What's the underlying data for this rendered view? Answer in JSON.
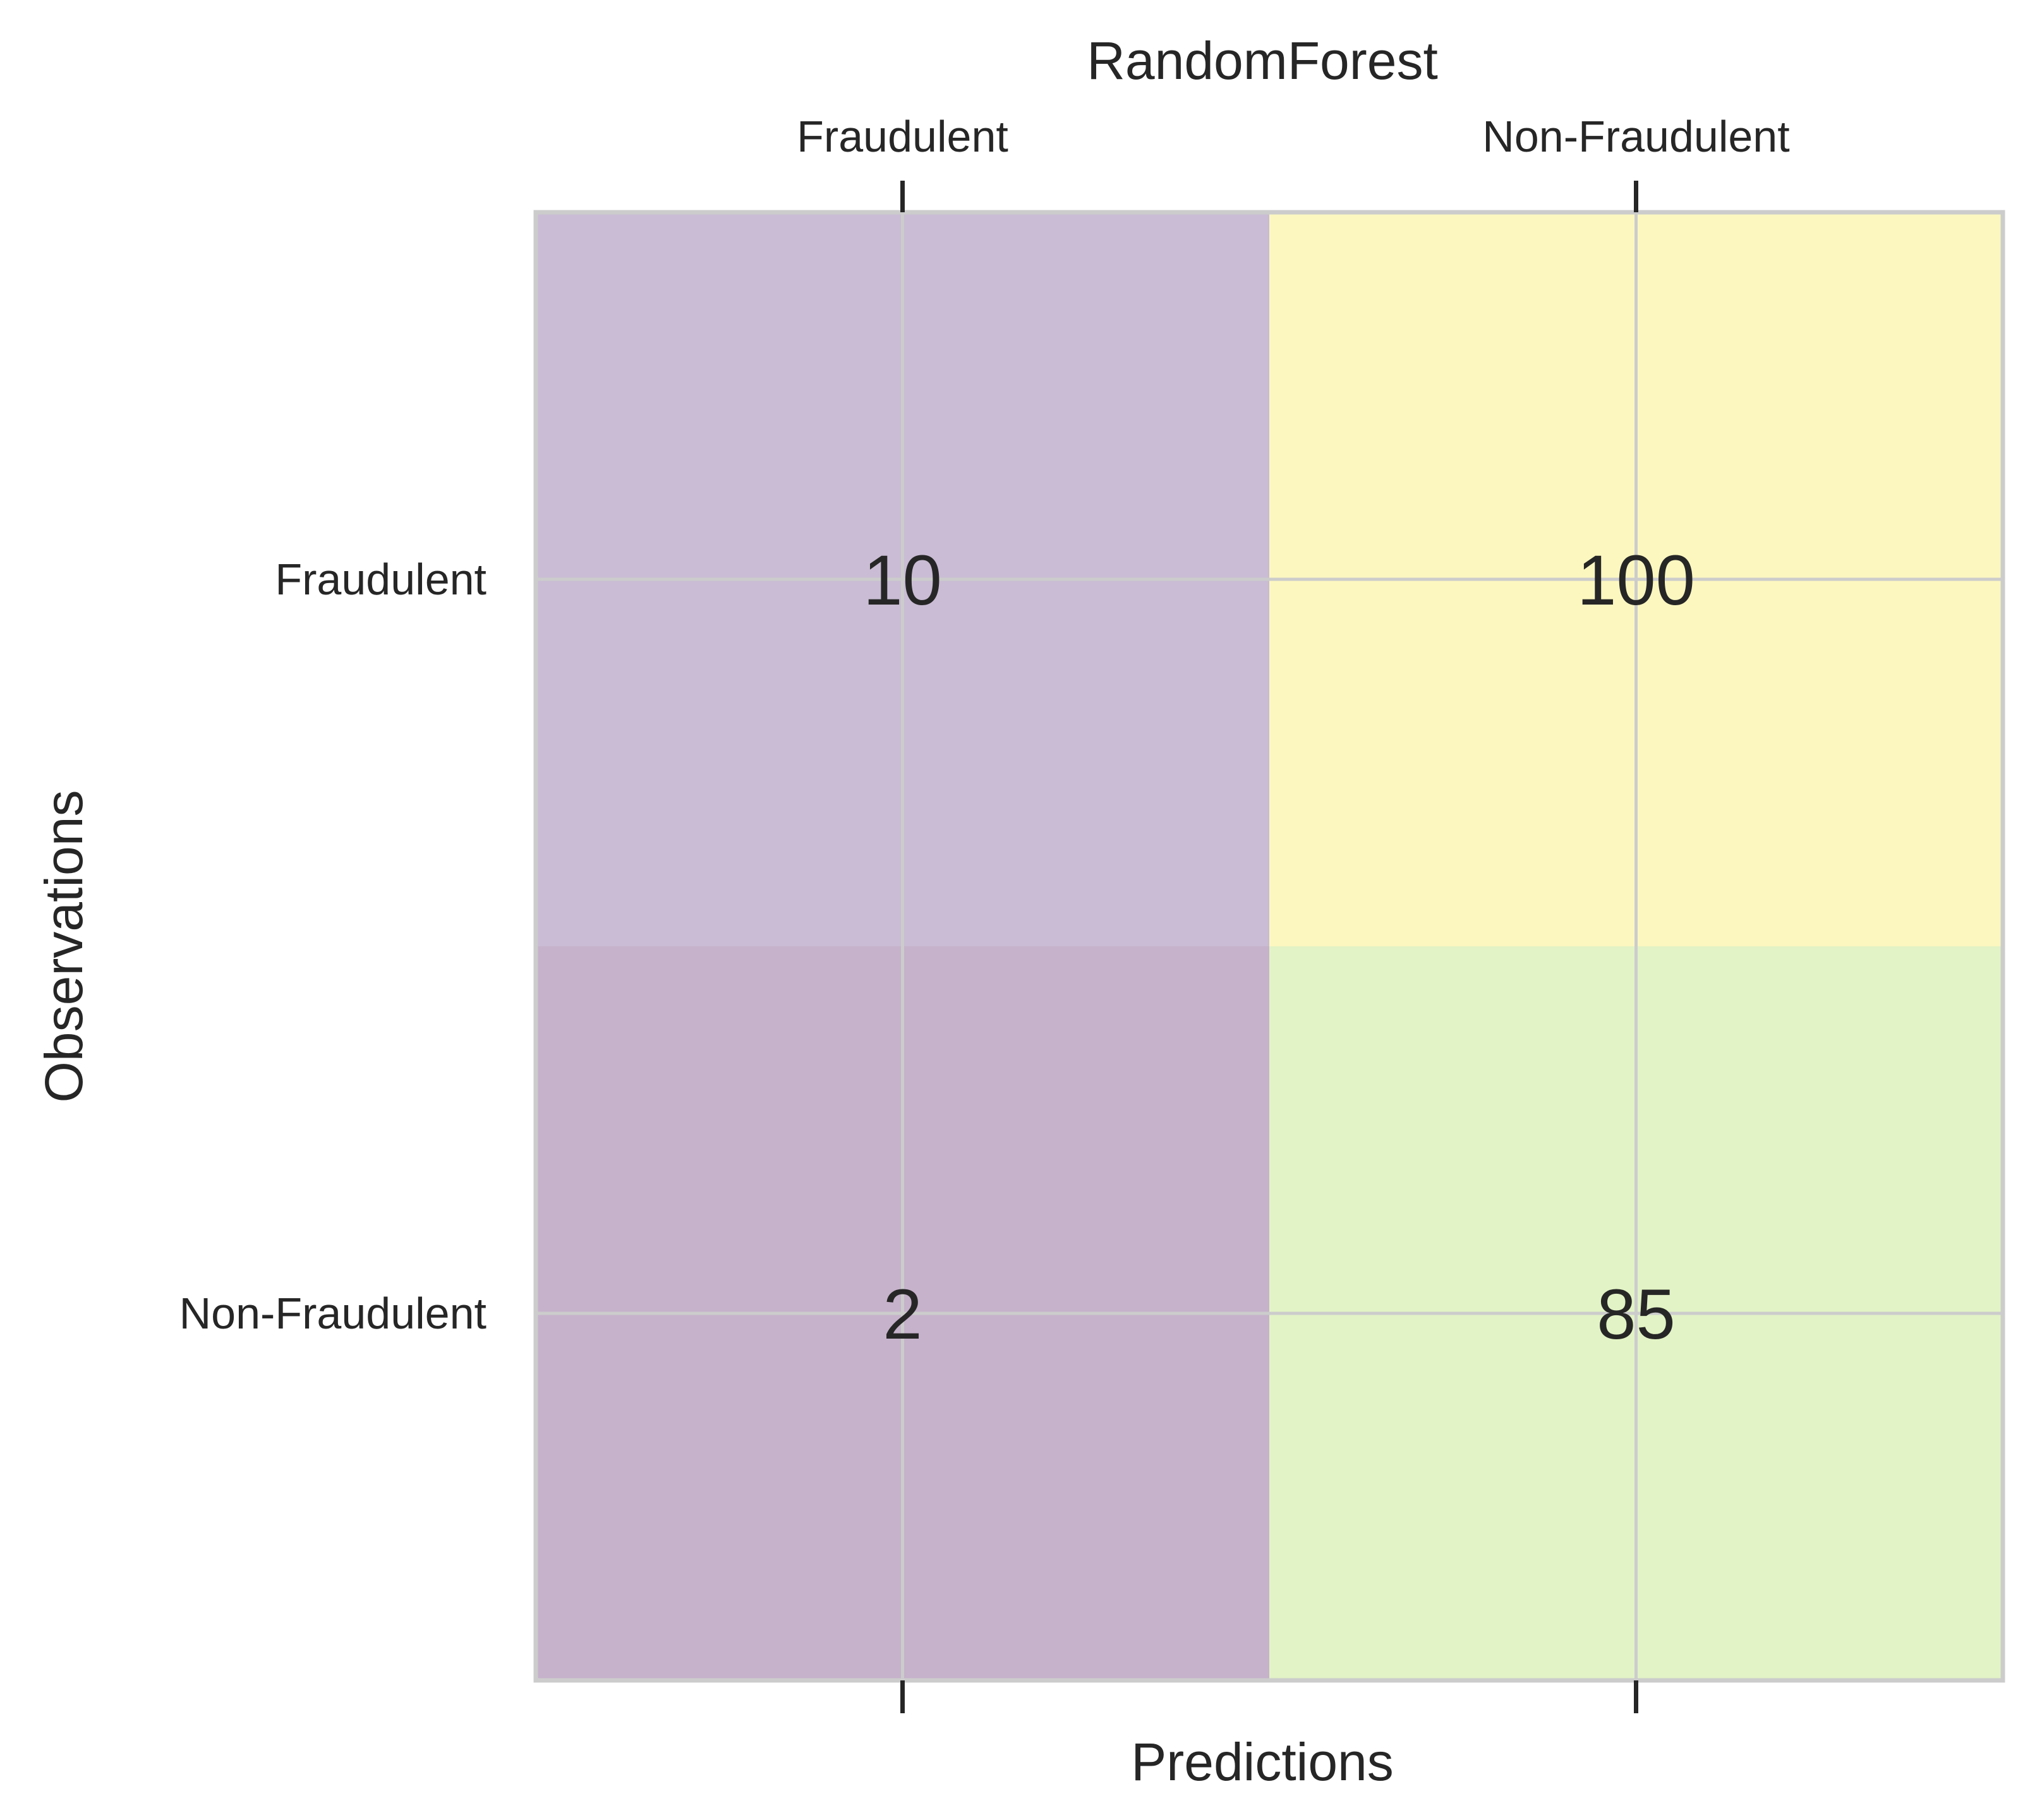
{
  "chart_data": {
    "type": "heatmap",
    "title": "RandomForest",
    "xlabel": "Predictions",
    "ylabel": "Observations",
    "x_categories": [
      "Fraudulent",
      "Non-Fraudulent"
    ],
    "y_categories": [
      "Fraudulent",
      "Non-Fraudulent"
    ],
    "values": [
      [
        10,
        100
      ],
      [
        2,
        85
      ]
    ],
    "cell_colors": [
      [
        "#c9bcd4",
        "#fcf7bf"
      ],
      [
        "#c6b2cb",
        "#e2f3c5"
      ]
    ],
    "grid": true,
    "x_tick_position": "top"
  }
}
